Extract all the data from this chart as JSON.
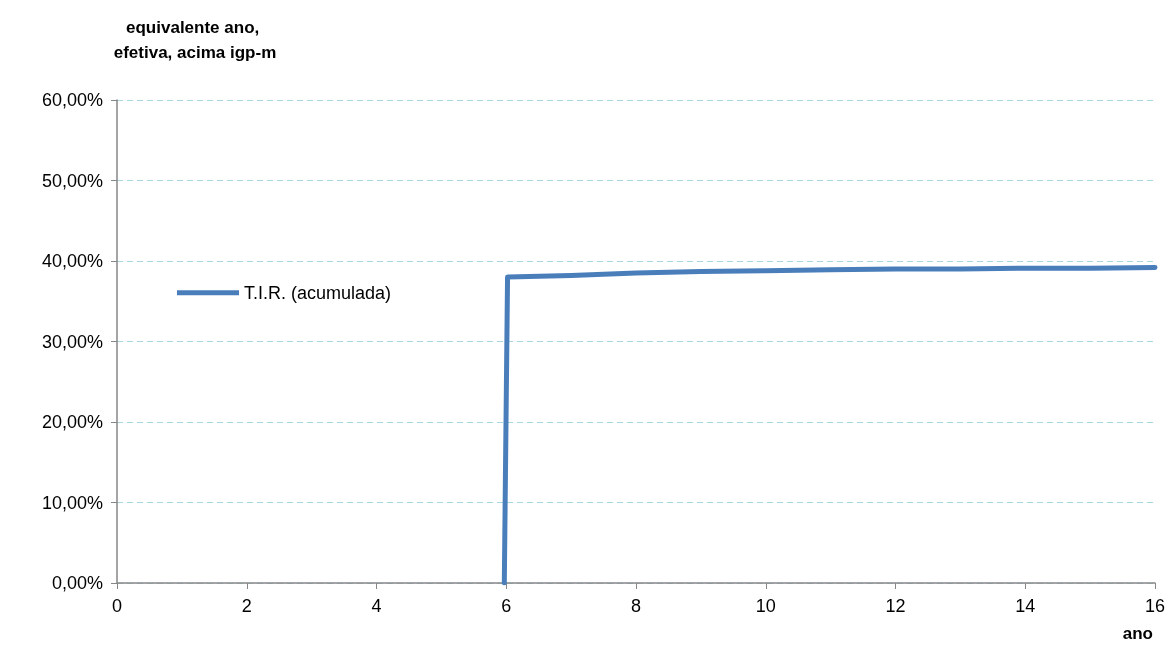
{
  "chart_data": {
    "type": "line",
    "ylabel": "equivalente ano, efetiva, acima igp-m",
    "xlabel": "ano",
    "x": [
      5.97,
      6.02,
      7,
      8,
      9,
      10,
      11,
      12,
      13,
      14,
      15,
      16
    ],
    "series": [
      {
        "name": "T.I.R. (acumulada)",
        "color": "#4a7ebb",
        "values": [
          0,
          38.0,
          38.2,
          38.5,
          38.7,
          38.8,
          38.9,
          39.0,
          39.0,
          39.1,
          39.1,
          39.2
        ]
      }
    ],
    "xlim": [
      0,
      16
    ],
    "xticks": [
      0,
      2,
      4,
      6,
      8,
      10,
      12,
      14,
      16
    ],
    "ylim": [
      0,
      60
    ],
    "yticks": [
      {
        "value": 0,
        "label": "0,00%"
      },
      {
        "value": 10,
        "label": "10,00%"
      },
      {
        "value": 20,
        "label": "20,00%"
      },
      {
        "value": 30,
        "label": "30,00%"
      },
      {
        "value": 40,
        "label": "40,00%"
      },
      {
        "value": 50,
        "label": "50,00%"
      },
      {
        "value": 60,
        "label": "60,00%"
      }
    ],
    "grid": "y",
    "legend": "left",
    "marker": "none",
    "line_style": "solid"
  }
}
